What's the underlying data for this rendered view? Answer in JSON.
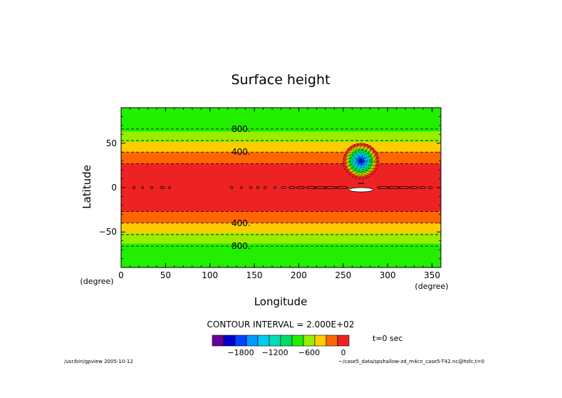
{
  "chart_data": {
    "type": "heatmap",
    "title": "Surface height",
    "xlabel": "Longitude",
    "ylabel": "Latitude",
    "x_unit": "(degree)",
    "y_unit": "(degree)",
    "xlim": [
      0,
      360
    ],
    "ylim": [
      -90,
      90
    ],
    "x_ticks": [
      0,
      50,
      100,
      150,
      200,
      250,
      300,
      350
    ],
    "y_ticks": [
      -50,
      0,
      50
    ],
    "bands": [
      {
        "lat_from": 63,
        "lat_to": 90,
        "color": "#22ee00"
      },
      {
        "lat_from": 51,
        "lat_to": 63,
        "color": "#99ee00"
      },
      {
        "lat_from": 40,
        "lat_to": 51,
        "color": "#ffcc00"
      },
      {
        "lat_from": 27,
        "lat_to": 40,
        "color": "#ff6600"
      },
      {
        "lat_from": -27,
        "lat_to": 27,
        "color": "#ee2222"
      },
      {
        "lat_from": -40,
        "lat_to": -27,
        "color": "#ff6600"
      },
      {
        "lat_from": -51,
        "lat_to": -40,
        "color": "#ffcc00"
      },
      {
        "lat_from": -63,
        "lat_to": -51,
        "color": "#99ee00"
      },
      {
        "lat_from": -90,
        "lat_to": -63,
        "color": "#22ee00"
      }
    ],
    "contour_lats": [
      66,
      53,
      40,
      27,
      -27,
      -40,
      -53,
      -66
    ],
    "contour_labels": [
      {
        "text": "800.",
        "lon": 135,
        "lat": 66
      },
      {
        "text": "400.",
        "lon": 135,
        "lat": 40
      },
      {
        "text": "400.",
        "lon": 135,
        "lat": -40
      },
      {
        "text": "800.",
        "lon": 135,
        "lat": -66
      }
    ],
    "mountain": {
      "lon": 270,
      "lat": 30,
      "radius_deg": 20,
      "rings": [
        {
          "r": 20,
          "color": "#ee2222"
        },
        {
          "r": 18,
          "color": "#ff6600"
        },
        {
          "r": 16.5,
          "color": "#ffcc00"
        },
        {
          "r": 15,
          "color": "#99ee00"
        },
        {
          "r": 13.5,
          "color": "#22ee00"
        },
        {
          "r": 12,
          "color": "#00dd66"
        },
        {
          "r": 10,
          "color": "#00ddbb"
        },
        {
          "r": 8,
          "color": "#00ccee"
        },
        {
          "r": 6,
          "color": "#0099ff"
        },
        {
          "r": 4,
          "color": "#0044ff"
        },
        {
          "r": 2,
          "color": "#0000cc"
        }
      ]
    },
    "colorbar": {
      "colors": [
        "#660099",
        "#0000cc",
        "#0044ff",
        "#0099ff",
        "#00ccee",
        "#00ddbb",
        "#00dd66",
        "#22ee00",
        "#99ee00",
        "#ffcc00",
        "#ff6600",
        "#ee2222"
      ],
      "labels": [
        {
          "text": "−1800",
          "index": 2
        },
        {
          "text": "−1200",
          "index": 5
        },
        {
          "text": "−600",
          "index": 8
        },
        {
          "text": "0",
          "index": 11
        }
      ]
    }
  },
  "contour_interval": "CONTOUR INTERVAL = 2.000E+02",
  "time_label": "t=0 sec",
  "footer_left": "/usr/bin/gpview  2005-10-12",
  "footer_right": "~/case5_data/spshallow-zd_m4cn_case5-T42.nc@hsfc,t=0"
}
